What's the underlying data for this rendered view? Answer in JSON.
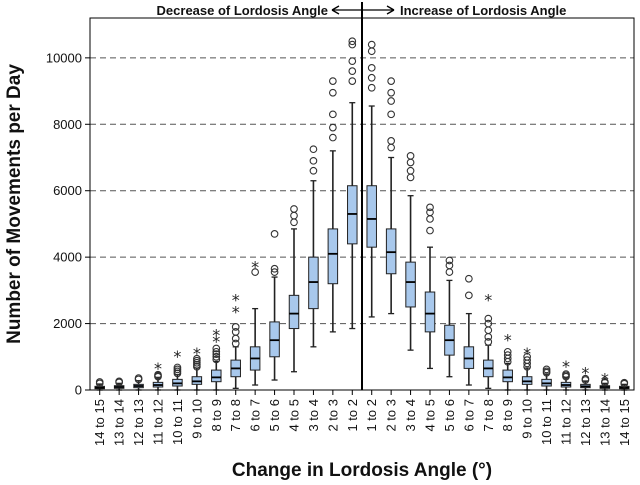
{
  "chart_data": {
    "type": "boxplot",
    "xlabel": "Change in Lordosis Angle (°)",
    "ylabel": "Number of Movements per Day",
    "ylim": [
      0,
      11200
    ],
    "yticks": [
      0,
      2000,
      4000,
      6000,
      8000,
      10000
    ],
    "grid": "dashed horizontal at y ticks",
    "annotations": {
      "left": "Decrease of Lordosis Angle",
      "right": "Increase of Lordosis Angle"
    },
    "categories": [
      "14 to 15",
      "13 to 14",
      "12 to 13",
      "11 to 12",
      "10 to 11",
      "9 to 10",
      "8 to 9",
      "7 to 8",
      "6 to 7",
      "5 to 6",
      "4 to 5",
      "3 to 4",
      "2 to 3",
      "1 to 2",
      "1 to 2",
      "2 to 3",
      "3 to 4",
      "4 to 5",
      "5 to 6",
      "6 to 7",
      "7 to 8",
      "8 to 9",
      "9 to 10",
      "10 to 11",
      "11 to 12",
      "12 to 13",
      "13 to 14",
      "14 to 15"
    ],
    "boxes": [
      {
        "min": 0,
        "q1": 40,
        "median": 70,
        "q3": 110,
        "max": 180,
        "outliers": [
          200,
          240
        ],
        "extremes": []
      },
      {
        "min": 0,
        "q1": 50,
        "median": 90,
        "q3": 130,
        "max": 200,
        "outliers": [
          230,
          260
        ],
        "extremes": []
      },
      {
        "min": 0,
        "q1": 70,
        "median": 120,
        "q3": 170,
        "max": 280,
        "outliers": [
          320,
          360
        ],
        "extremes": []
      },
      {
        "min": 0,
        "q1": 90,
        "median": 150,
        "q3": 230,
        "max": 380,
        "outliers": [
          400,
          430,
          460
        ],
        "extremes": [
          700
        ]
      },
      {
        "min": 0,
        "q1": 120,
        "median": 200,
        "q3": 320,
        "max": 460,
        "outliers": [
          500,
          560,
          620,
          680
        ],
        "extremes": [
          1050
        ]
      },
      {
        "min": 0,
        "q1": 170,
        "median": 260,
        "q3": 400,
        "max": 660,
        "outliers": [
          700,
          760,
          820,
          880,
          940
        ],
        "extremes": [
          1150
        ]
      },
      {
        "min": 0,
        "q1": 250,
        "median": 380,
        "q3": 600,
        "max": 860,
        "outliers": [
          920,
          1000,
          1080,
          1150,
          1250
        ],
        "extremes": [
          1500,
          1700
        ]
      },
      {
        "min": 50,
        "q1": 400,
        "median": 650,
        "q3": 900,
        "max": 1300,
        "outliers": [
          1400,
          1550,
          1750,
          1900
        ],
        "extremes": [
          2400,
          2750
        ]
      },
      {
        "min": 150,
        "q1": 600,
        "median": 950,
        "q3": 1300,
        "max": 2450,
        "outliers": [
          3550
        ],
        "extremes": [
          3750
        ]
      },
      {
        "min": 300,
        "q1": 1000,
        "median": 1500,
        "q3": 2050,
        "max": 3400,
        "outliers": [
          3550,
          3650,
          4700
        ],
        "extremes": []
      },
      {
        "min": 550,
        "q1": 1850,
        "median": 2300,
        "q3": 2850,
        "max": 4850,
        "outliers": [
          5050,
          5250,
          5450
        ],
        "extremes": []
      },
      {
        "min": 1300,
        "q1": 2450,
        "median": 3250,
        "q3": 4000,
        "max": 6300,
        "outliers": [
          6600,
          6900,
          7250
        ],
        "extremes": []
      },
      {
        "min": 1750,
        "q1": 3200,
        "median": 4100,
        "q3": 4850,
        "max": 7200,
        "outliers": [
          7600,
          7900,
          8300,
          8950,
          9300
        ],
        "extremes": []
      },
      {
        "min": 1850,
        "q1": 4400,
        "median": 5300,
        "q3": 6150,
        "max": 8650,
        "outliers": [
          9300,
          9600,
          9900,
          10400,
          10500
        ],
        "extremes": []
      },
      {
        "min": 2200,
        "q1": 4300,
        "median": 5150,
        "q3": 6150,
        "max": 8550,
        "outliers": [
          9100,
          9400,
          9700,
          10200,
          10400
        ],
        "extremes": []
      },
      {
        "min": 2300,
        "q1": 3500,
        "median": 4150,
        "q3": 4850,
        "max": 7000,
        "outliers": [
          7300,
          7500,
          8300,
          8700,
          8950,
          9300
        ],
        "extremes": []
      },
      {
        "min": 1200,
        "q1": 2500,
        "median": 3250,
        "q3": 3850,
        "max": 5850,
        "outliers": [
          6400,
          6600,
          6850,
          7050
        ],
        "extremes": []
      },
      {
        "min": 650,
        "q1": 1750,
        "median": 2300,
        "q3": 2950,
        "max": 4300,
        "outliers": [
          4800,
          5150,
          5350,
          5500
        ],
        "extremes": []
      },
      {
        "min": 400,
        "q1": 1050,
        "median": 1500,
        "q3": 1950,
        "max": 3300,
        "outliers": [
          3550,
          3750,
          3900
        ],
        "extremes": []
      },
      {
        "min": 150,
        "q1": 650,
        "median": 950,
        "q3": 1300,
        "max": 2300,
        "outliers": [
          2850,
          3350
        ],
        "extremes": []
      },
      {
        "min": 50,
        "q1": 400,
        "median": 650,
        "q3": 900,
        "max": 1350,
        "outliers": [
          1450,
          1600,
          1800,
          2000,
          2150
        ],
        "extremes": [
          2750
        ]
      },
      {
        "min": 0,
        "q1": 250,
        "median": 380,
        "q3": 600,
        "max": 800,
        "outliers": [
          850,
          950,
          1050,
          1150
        ],
        "extremes": [
          1550
        ]
      },
      {
        "min": 0,
        "q1": 170,
        "median": 260,
        "q3": 400,
        "max": 660,
        "outliers": [
          700,
          800,
          900,
          1000
        ],
        "extremes": [
          1150
        ]
      },
      {
        "min": 0,
        "q1": 120,
        "median": 200,
        "q3": 320,
        "max": 480,
        "outliers": [
          520,
          560,
          620
        ],
        "extremes": []
      },
      {
        "min": 0,
        "q1": 90,
        "median": 150,
        "q3": 230,
        "max": 380,
        "outliers": [
          400,
          440,
          480
        ],
        "extremes": [
          750
        ]
      },
      {
        "min": 0,
        "q1": 70,
        "median": 110,
        "q3": 170,
        "max": 270,
        "outliers": [
          300,
          340
        ],
        "extremes": [
          550
        ]
      },
      {
        "min": 0,
        "q1": 50,
        "median": 90,
        "q3": 130,
        "max": 200,
        "outliers": [
          220,
          250
        ],
        "extremes": [
          380
        ]
      },
      {
        "min": 0,
        "q1": 40,
        "median": 70,
        "q3": 110,
        "max": 170,
        "outliers": [
          190,
          220
        ],
        "extremes": []
      }
    ],
    "colors": {
      "box_fill": "#a8c8ec",
      "box_stroke": "#222222",
      "grid": "#555555",
      "divider": "#000000"
    }
  }
}
